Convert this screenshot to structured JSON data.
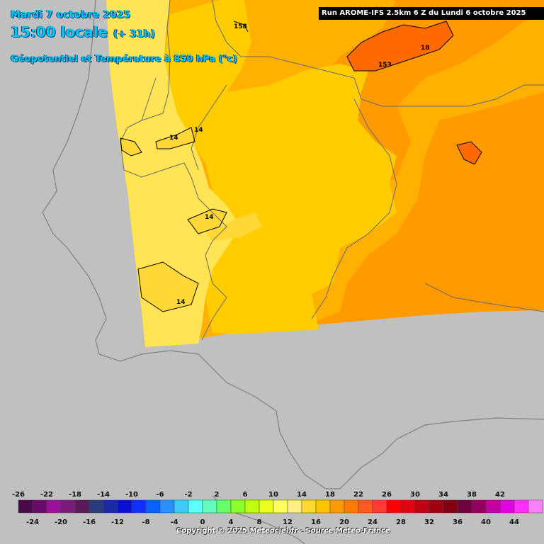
{
  "header": {
    "date": "Mardi 7 octobre 2025",
    "time": "15:00 locale",
    "lead": "(+ 31h)",
    "parameter": "Géopotentiel et Température à 850 hPa (°c)",
    "run": "Run AROME-IFS 2.5km 6 Z du Lundi 6 octobre 2025"
  },
  "contour_labels": [
    "158",
    "18",
    "153",
    "14",
    "14",
    "14",
    "14"
  ],
  "legend": {
    "top_labels": [
      "-26",
      "-22",
      "-18",
      "-14",
      "-10",
      "-6",
      "-2",
      "2",
      "6",
      "10",
      "14",
      "18",
      "22",
      "26",
      "30",
      "34",
      "38",
      "42"
    ],
    "bottom_labels": [
      "-24",
      "-20",
      "-16",
      "-12",
      "-8",
      "-4",
      "0",
      "4",
      "8",
      "12",
      "16",
      "20",
      "24",
      "28",
      "32",
      "36",
      "40",
      "44"
    ],
    "colors": [
      "#4a0a4a",
      "#6a0a6a",
      "#9a109a",
      "#7a1a7a",
      "#5a1a5a",
      "#2a3a7a",
      "#1a2aa0",
      "#0a10d0",
      "#1030ff",
      "#0a60ff",
      "#2a90ff",
      "#40c8ff",
      "#60ffff",
      "#60ffc0",
      "#6aff6a",
      "#8aff30",
      "#c0ff10",
      "#e8ff20",
      "#ffff60",
      "#ffee88",
      "#ffd838",
      "#ffc400",
      "#ff9a00",
      "#ff7a00",
      "#ff5a20",
      "#ff3a30",
      "#ff0000",
      "#e00010",
      "#c00010",
      "#a00010",
      "#800010",
      "#700040",
      "#900060",
      "#c000a0",
      "#e000e0",
      "#ff30ff",
      "#ff80ff"
    ]
  },
  "copyright": "Copyright © 2025 Meteociel.fr - Source Meteo-France"
}
